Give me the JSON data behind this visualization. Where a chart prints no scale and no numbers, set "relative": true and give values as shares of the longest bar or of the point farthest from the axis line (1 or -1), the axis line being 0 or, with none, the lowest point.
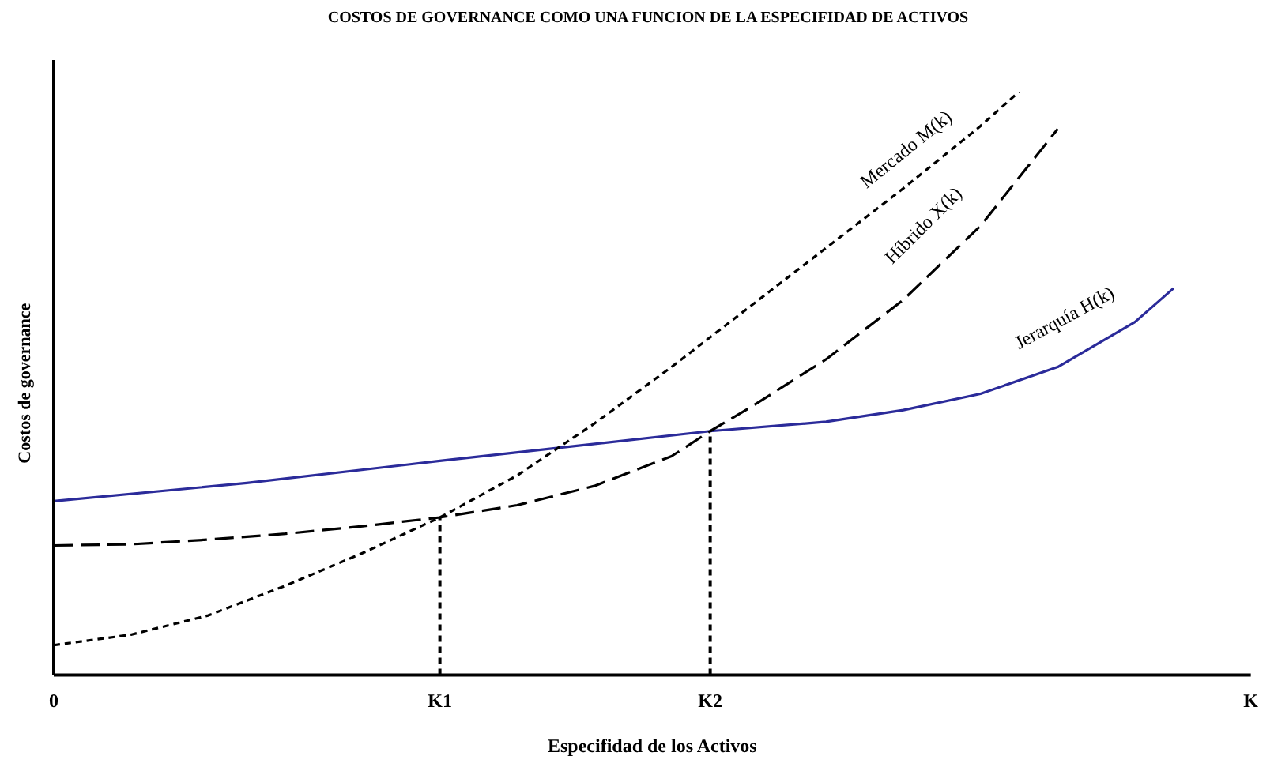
{
  "chart_data": {
    "type": "line",
    "title": "COSTOS DE GOVERNANCE COMO UNA FUNCION DE LA ESPECIFIDAD DE ACTIVOS",
    "xlabel": "Especifidad de los Activos",
    "ylabel": "Costos de governance",
    "relative": true,
    "grid": false,
    "legend": false,
    "marker": "none",
    "categories": [
      "0",
      null,
      null,
      null,
      null,
      null,
      null,
      null,
      null,
      null,
      "K1",
      null,
      null,
      null,
      null,
      null,
      null,
      "K2",
      null,
      null,
      null,
      null,
      null,
      null,
      null,
      null,
      null,
      null,
      null,
      null,
      null,
      "K"
    ],
    "series": [
      {
        "name": "Mercado M(k)",
        "color": "#000000",
        "line_style": "dotted",
        "values": [
          0.051,
          null,
          0.069,
          null,
          0.102,
          null,
          0.153,
          null,
          0.209,
          null,
          0.27,
          null,
          0.342,
          null,
          0.431,
          null,
          0.528,
          null,
          0.63,
          null,
          0.732,
          null,
          0.834,
          null,
          0.941,
          1.0,
          null,
          null,
          null,
          null,
          null,
          null
        ]
      },
      {
        "name": "Híbrido X(k)",
        "color": "#000000",
        "line_style": "dashed",
        "values": [
          0.222,
          null,
          0.224,
          null,
          0.232,
          null,
          0.242,
          null,
          0.255,
          null,
          0.27,
          null,
          0.291,
          null,
          0.324,
          null,
          0.375,
          0.418,
          0.457,
          null,
          0.541,
          null,
          0.643,
          null,
          0.77,
          null,
          0.936,
          null,
          null,
          null,
          null,
          null
        ]
      },
      {
        "name": "Jerarquía H(k)",
        "color": "#2b2b9a",
        "line_style": "solid",
        "values": [
          0.298,
          null,
          null,
          null,
          null,
          0.329,
          null,
          null,
          null,
          null,
          0.367,
          null,
          null,
          null,
          null,
          null,
          null,
          0.418,
          null,
          null,
          0.434,
          null,
          0.454,
          null,
          0.482,
          null,
          0.528,
          null,
          0.605,
          0.663,
          null,
          null
        ]
      }
    ],
    "ref_lines": [
      {
        "axis": "x",
        "value": "K1",
        "line_style": "dotted",
        "color": "#000000"
      },
      {
        "axis": "x",
        "value": "K2",
        "line_style": "dotted",
        "color": "#000000"
      }
    ]
  }
}
